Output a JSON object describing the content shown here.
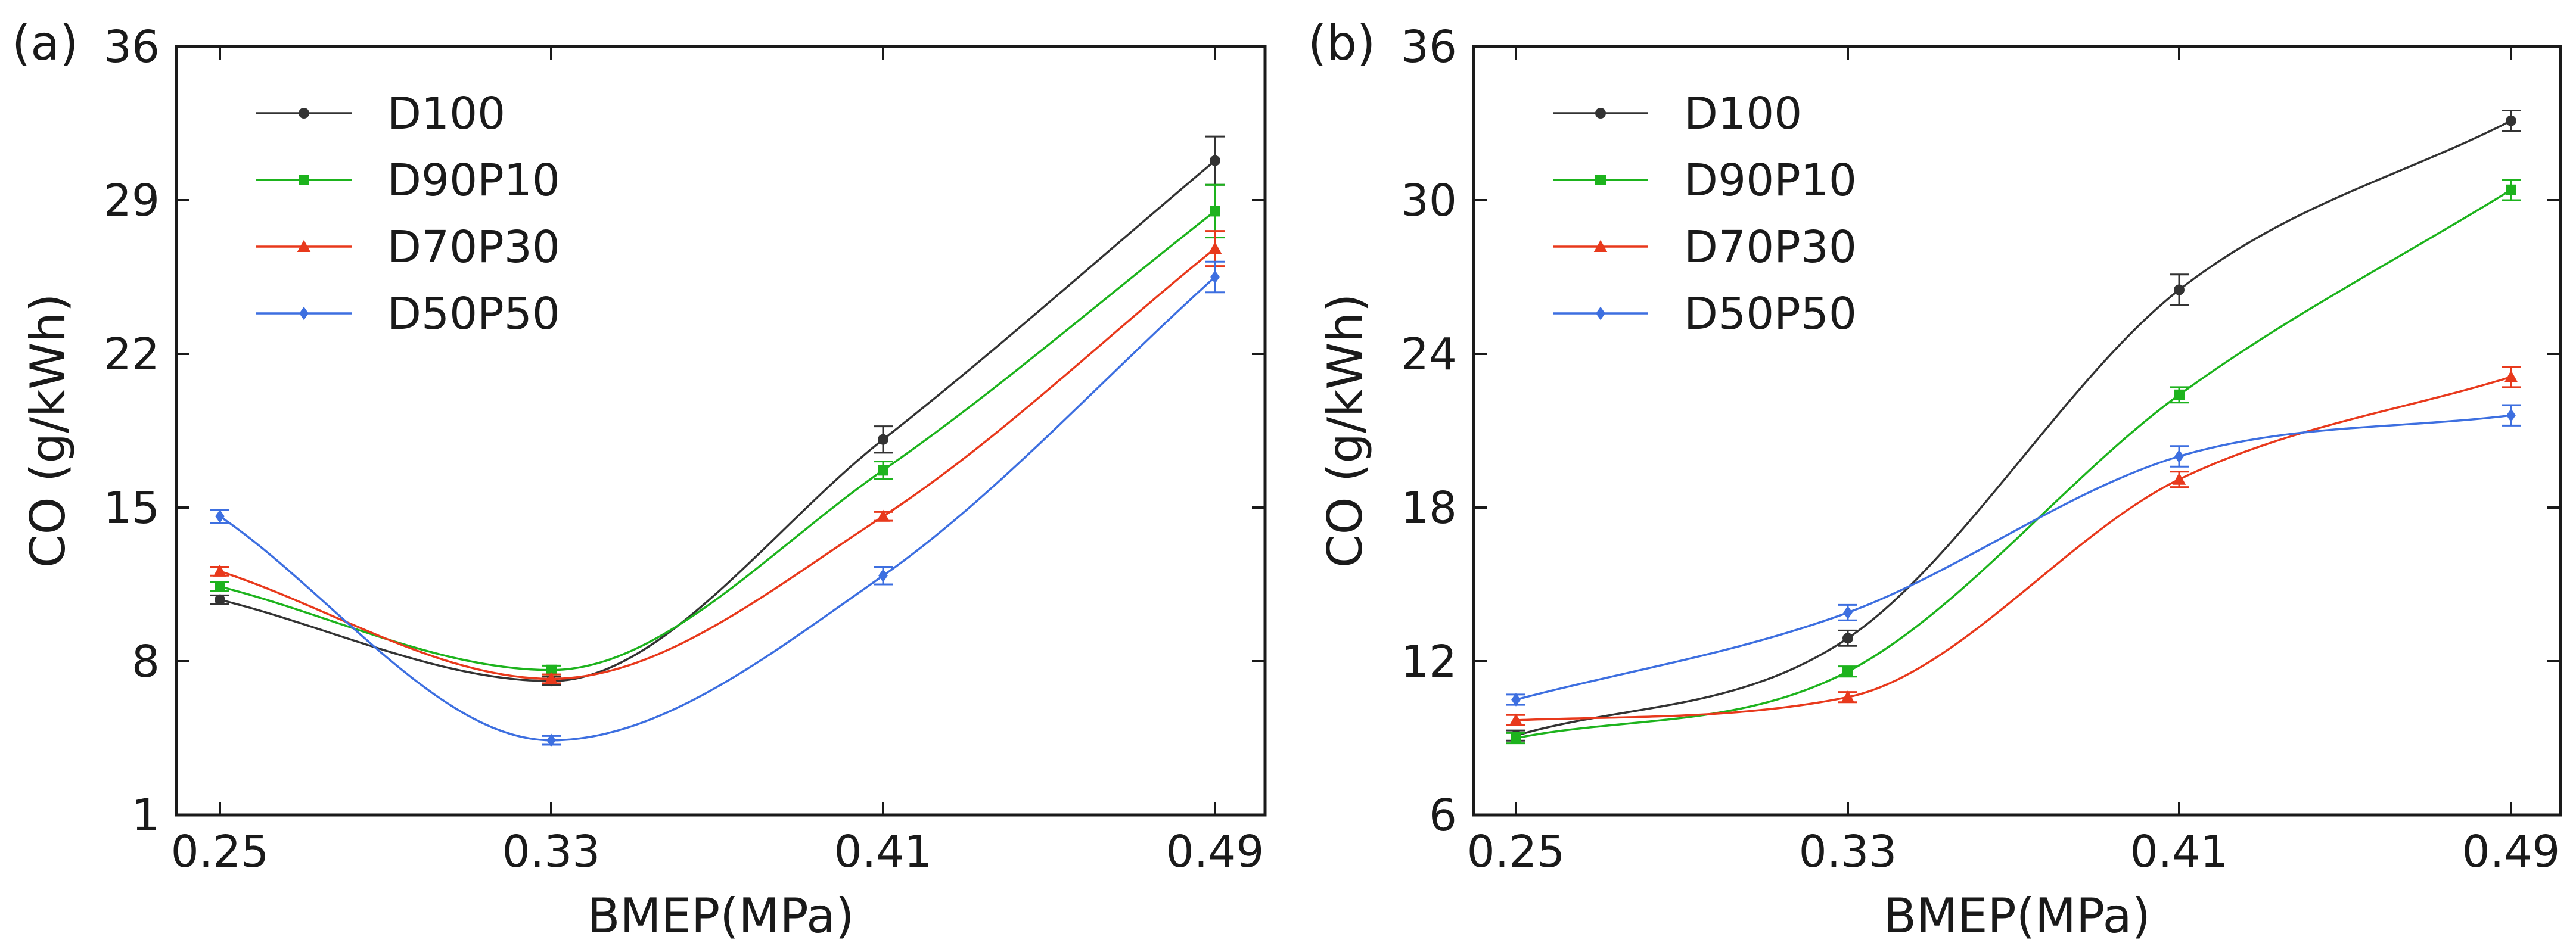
{
  "figure": {
    "colors": {
      "D100": "#333333",
      "D90P10": "#1db31d",
      "D70P30": "#e8391c",
      "D50P50": "#3d6fe0",
      "axis": "#1a1a1a"
    }
  },
  "chart_data": [
    {
      "type": "line",
      "panel_label": "(a)",
      "title": "",
      "xlabel": "BMEP(MPa)",
      "ylabel": "CO (g/kWh)",
      "categories": [
        "0.25",
        "0.33",
        "0.41",
        "0.49"
      ],
      "x": [
        0.25,
        0.33,
        0.41,
        0.49
      ],
      "xlim": [
        0.2315,
        0.4998
      ],
      "ylim": [
        1,
        36
      ],
      "yticks": [
        1,
        8,
        15,
        22,
        29,
        36
      ],
      "ytick_labels": [
        "1",
        "8",
        "15",
        "22",
        "29",
        "36"
      ],
      "grid": false,
      "legend_position": "top-left",
      "series": [
        {
          "name": "D100",
          "marker": "circle",
          "values": [
            10.8,
            7.1,
            18.1,
            30.8
          ],
          "errors": [
            0.2,
            0.2,
            0.6,
            1.1
          ]
        },
        {
          "name": "D90P10",
          "marker": "square",
          "values": [
            11.4,
            7.6,
            16.7,
            28.5
          ],
          "errors": [
            0.2,
            0.2,
            0.4,
            1.2
          ]
        },
        {
          "name": "D70P30",
          "marker": "triangle",
          "values": [
            12.1,
            7.2,
            14.6,
            26.8
          ],
          "errors": [
            0.2,
            0.2,
            0.2,
            0.8
          ]
        },
        {
          "name": "D50P50",
          "marker": "diamond",
          "values": [
            14.6,
            4.4,
            11.9,
            25.5
          ],
          "errors": [
            0.3,
            0.2,
            0.4,
            0.7
          ]
        }
      ]
    },
    {
      "type": "line",
      "panel_label": "(b)",
      "title": "",
      "xlabel": "BMEP(MPa)",
      "ylabel": "CO (g/kWh)",
      "categories": [
        "0.25",
        "0.33",
        "0.41",
        "0.49"
      ],
      "x": [
        0.25,
        0.33,
        0.41,
        0.49
      ],
      "xlim": [
        0.2316,
        0.5015
      ],
      "ylim": [
        6,
        36
      ],
      "yticks": [
        6,
        12,
        18,
        24,
        30,
        36
      ],
      "ytick_labels": [
        "6",
        "12",
        "18",
        "24",
        "30",
        "36"
      ],
      "grid": false,
      "legend_position": "top-left",
      "series": [
        {
          "name": "D100",
          "marker": "circle",
          "values": [
            9.1,
            12.9,
            26.5,
            33.1
          ],
          "errors": [
            0.2,
            0.3,
            0.6,
            0.4
          ]
        },
        {
          "name": "D90P10",
          "marker": "square",
          "values": [
            9.0,
            11.6,
            22.4,
            30.4
          ],
          "errors": [
            0.2,
            0.2,
            0.3,
            0.4
          ]
        },
        {
          "name": "D70P30",
          "marker": "triangle",
          "values": [
            9.7,
            10.6,
            19.1,
            23.1
          ],
          "errors": [
            0.2,
            0.2,
            0.3,
            0.4
          ]
        },
        {
          "name": "D50P50",
          "marker": "diamond",
          "values": [
            10.5,
            13.9,
            20.0,
            21.6
          ],
          "errors": [
            0.2,
            0.3,
            0.4,
            0.4
          ]
        }
      ]
    }
  ]
}
